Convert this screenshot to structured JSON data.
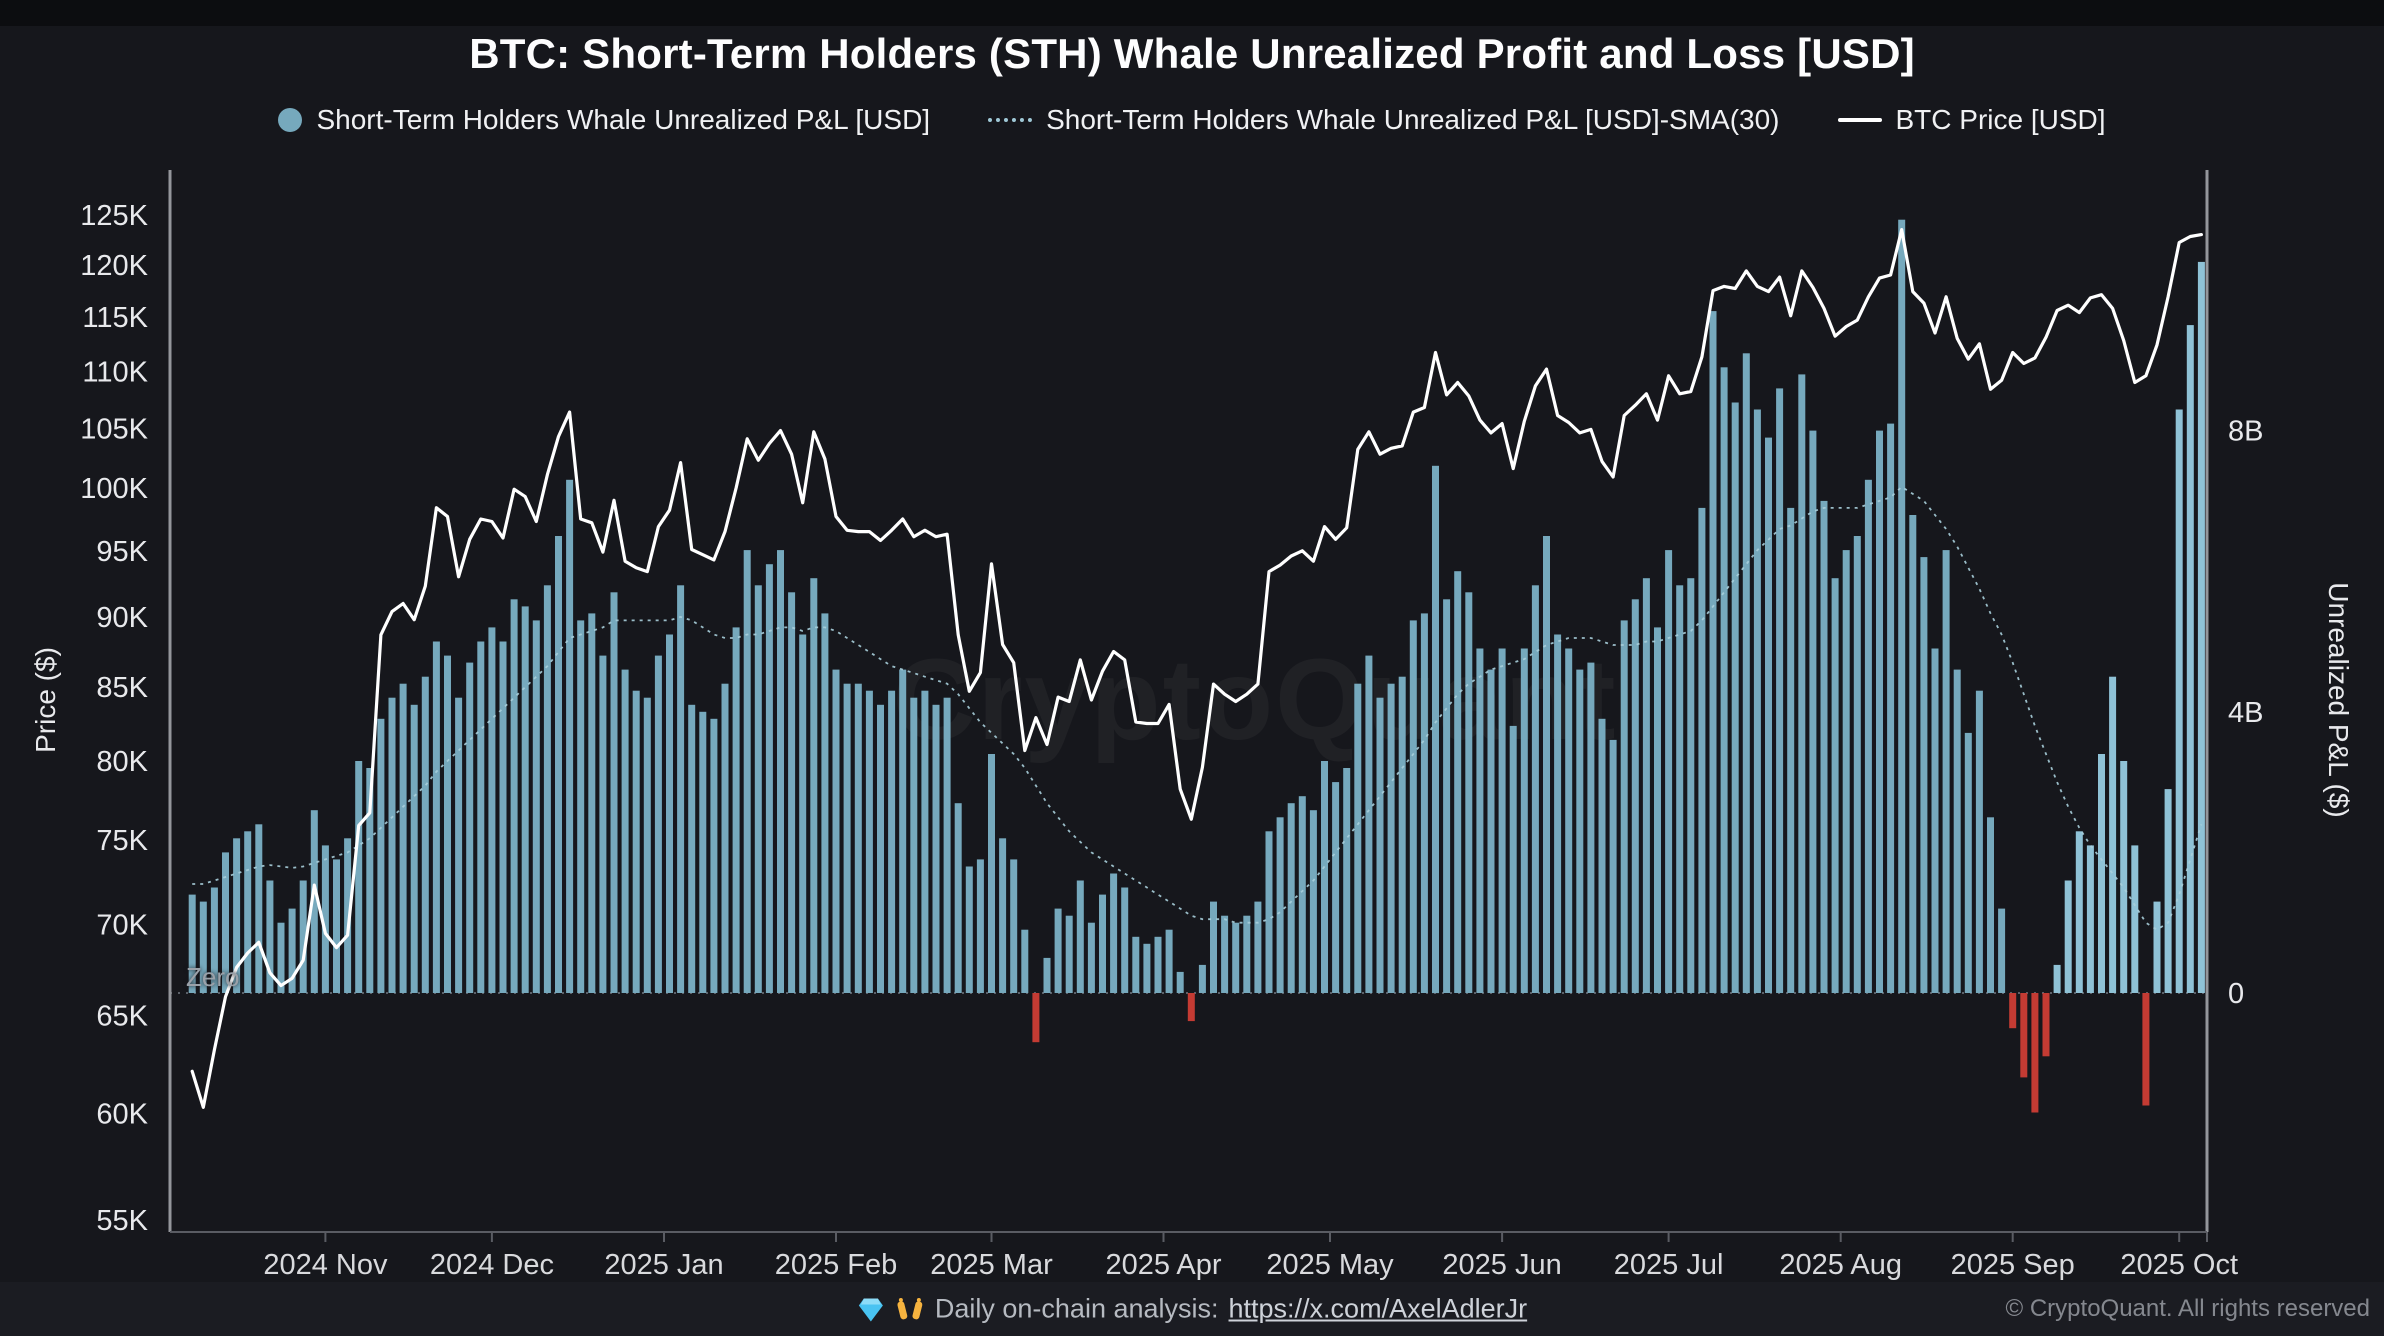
{
  "header": {
    "title": "BTC: Short-Term Holders (STH) Whale Unrealized Profit and Loss [USD]"
  },
  "legend": {
    "items": [
      {
        "label": "Short-Term Holders Whale Unrealized P&L [USD]",
        "marker": "dot",
        "color": "#76a9bd"
      },
      {
        "label": "Short-Term Holders Whale Unrealized P&L [USD]-SMA(30)",
        "marker": "dashed-line",
        "color": "#9fc8d6"
      },
      {
        "label": "BTC Price [USD]",
        "marker": "solid-line",
        "color": "#ffffff"
      }
    ]
  },
  "watermark": "CryptoQuant",
  "footer": {
    "analysis_text": "Daily on-chain analysis:",
    "link_text": "https://x.com/AxelAdlerJr",
    "copyright": "© CryptoQuant. All rights reserved"
  },
  "colors": {
    "background": "#16171c",
    "bar_positive": "#76a9bd",
    "bar_recent": "#8fc2d6",
    "bar_negative": "#c43b33",
    "price_line": "#ffffff",
    "sma_line": "#a9cfdb",
    "axis_line": "#94969b",
    "x_axis_line": "#5a5c63",
    "tick_text": "#e8e9ec"
  },
  "chart_data": {
    "type": "bar",
    "title": "BTC: Short-Term Holders (STH) Whale Unrealized Profit and Loss [USD]",
    "xlabel": "",
    "ylabel_left": "Price ($)",
    "ylabel_right": "Unrealized P&L ($)",
    "zero_label": "Zero",
    "x_axis_start_date": "2024-10-04",
    "x_axis_total_days": 367,
    "data_start_date": "2024-10-08",
    "data_start_day_offset": 4,
    "x_step_days": 2,
    "grid": false,
    "legend_position": "top",
    "left_axis": {
      "title": "Price ($)",
      "scale": "log",
      "tick_labels": [
        "125K",
        "120K",
        "115K",
        "110K",
        "105K",
        "100K",
        "95K",
        "90K",
        "85K",
        "80K",
        "75K",
        "70K",
        "65K",
        "60K",
        "55K"
      ],
      "tick_values": [
        125000,
        120000,
        115000,
        110000,
        105000,
        100000,
        95000,
        90000,
        85000,
        80000,
        75000,
        70000,
        65000,
        60000,
        55000
      ],
      "ylim": [
        52000,
        127000
      ]
    },
    "right_axis": {
      "title": "Unrealized P&L ($)",
      "scale": "linear",
      "tick_labels": [
        "8B",
        "4B",
        "0"
      ],
      "tick_values": [
        8,
        4,
        0
      ],
      "units": "billions USD",
      "ylim": [
        -2.5,
        12
      ]
    },
    "x_axis_labels": [
      {
        "label": "2024 Nov",
        "day": 28
      },
      {
        "label": "2024 Dec",
        "day": 58
      },
      {
        "label": "2025 Jan",
        "day": 89
      },
      {
        "label": "2025 Feb",
        "day": 120
      },
      {
        "label": "2025 Mar",
        "day": 148
      },
      {
        "label": "2025 Apr",
        "day": 179
      },
      {
        "label": "2025 May",
        "day": 209
      },
      {
        "label": "2025 Jun",
        "day": 240
      },
      {
        "label": "2025 Jul",
        "day": 270
      },
      {
        "label": "2025 Aug",
        "day": 301
      },
      {
        "label": "2025 Sep",
        "day": 332
      },
      {
        "label": "2025 Oct",
        "day": 362
      }
    ],
    "series": [
      {
        "name": "Short-Term Holders Whale Unrealized P&L [USD]",
        "type": "bar",
        "unit": "billion USD",
        "color_positive": "#76a9bd",
        "color_recent": "#8fc2d6",
        "color_negative": "#c43b33",
        "recent_from_index": 168,
        "values": [
          1.4,
          1.3,
          1.5,
          2.0,
          2.2,
          2.3,
          2.4,
          1.6,
          1.0,
          1.2,
          1.6,
          2.6,
          2.1,
          1.9,
          2.2,
          3.3,
          3.2,
          3.9,
          4.2,
          4.4,
          4.1,
          4.5,
          5.0,
          4.8,
          4.2,
          4.7,
          5.0,
          5.2,
          5.0,
          5.6,
          5.5,
          5.3,
          5.8,
          6.5,
          7.3,
          5.3,
          5.4,
          4.8,
          5.7,
          4.6,
          4.3,
          4.2,
          4.8,
          5.1,
          5.8,
          4.1,
          4.0,
          3.9,
          4.4,
          5.2,
          6.3,
          5.8,
          6.1,
          6.3,
          5.7,
          5.1,
          5.9,
          5.4,
          4.6,
          4.4,
          4.4,
          4.3,
          4.1,
          4.3,
          4.6,
          4.2,
          4.3,
          4.1,
          4.2,
          2.7,
          1.8,
          1.9,
          3.4,
          2.2,
          1.9,
          0.9,
          -0.7,
          0.5,
          1.2,
          1.1,
          1.6,
          1.0,
          1.4,
          1.7,
          1.5,
          0.8,
          0.7,
          0.8,
          0.9,
          0.3,
          -0.4,
          0.4,
          1.3,
          1.1,
          1.0,
          1.1,
          1.3,
          2.3,
          2.5,
          2.7,
          2.8,
          2.6,
          3.3,
          3.0,
          3.2,
          4.4,
          4.8,
          4.2,
          4.4,
          4.5,
          5.3,
          5.4,
          7.5,
          5.6,
          6.0,
          5.7,
          4.9,
          4.6,
          4.9,
          3.8,
          4.9,
          5.8,
          6.5,
          5.1,
          4.9,
          4.6,
          4.7,
          3.9,
          3.6,
          5.3,
          5.6,
          5.9,
          5.2,
          6.3,
          5.8,
          5.9,
          6.9,
          9.7,
          8.9,
          8.4,
          9.1,
          8.3,
          7.9,
          8.6,
          6.9,
          8.8,
          8.0,
          7.0,
          5.9,
          6.3,
          6.5,
          7.3,
          8.0,
          8.1,
          11.0,
          6.8,
          6.2,
          4.9,
          6.3,
          4.6,
          3.7,
          4.3,
          2.5,
          1.2,
          -0.5,
          -1.2,
          -1.7,
          -0.9,
          0.4,
          1.6,
          2.3,
          2.1,
          3.4,
          4.5,
          3.3,
          2.1,
          -1.6,
          1.3,
          2.9,
          8.3,
          9.5,
          10.4
        ]
      },
      {
        "name": "Short-Term Holders Whale Unrealized P&L [USD]-SMA(30)",
        "type": "line",
        "style": "dashed",
        "unit": "billion USD",
        "color": "#a9cfdb",
        "values": [
          1.55,
          1.55,
          1.6,
          1.65,
          1.7,
          1.75,
          1.8,
          1.82,
          1.8,
          1.78,
          1.8,
          1.85,
          1.9,
          1.95,
          2.0,
          2.1,
          2.2,
          2.35,
          2.5,
          2.65,
          2.8,
          2.95,
          3.15,
          3.3,
          3.45,
          3.6,
          3.75,
          3.9,
          4.05,
          4.2,
          4.35,
          4.5,
          4.65,
          4.85,
          5.05,
          5.1,
          5.15,
          5.2,
          5.3,
          5.3,
          5.3,
          5.3,
          5.3,
          5.3,
          5.35,
          5.3,
          5.2,
          5.1,
          5.05,
          5.05,
          5.1,
          5.1,
          5.15,
          5.2,
          5.2,
          5.15,
          5.2,
          5.2,
          5.15,
          5.05,
          4.95,
          4.85,
          4.75,
          4.65,
          4.6,
          4.55,
          4.5,
          4.45,
          4.4,
          4.25,
          4.05,
          3.85,
          3.7,
          3.55,
          3.4,
          3.2,
          2.95,
          2.7,
          2.5,
          2.3,
          2.15,
          2.0,
          1.9,
          1.8,
          1.7,
          1.6,
          1.5,
          1.4,
          1.3,
          1.2,
          1.1,
          1.05,
          1.05,
          1.05,
          1.0,
          1.0,
          1.0,
          1.05,
          1.15,
          1.3,
          1.45,
          1.6,
          1.8,
          2.0,
          2.2,
          2.4,
          2.6,
          2.8,
          3.0,
          3.2,
          3.4,
          3.6,
          3.85,
          4.05,
          4.25,
          4.4,
          4.5,
          4.6,
          4.65,
          4.7,
          4.75,
          4.85,
          4.95,
          5.0,
          5.05,
          5.05,
          5.05,
          5.0,
          4.95,
          4.95,
          4.95,
          5.0,
          5.0,
          5.05,
          5.1,
          5.15,
          5.3,
          5.5,
          5.7,
          5.9,
          6.1,
          6.3,
          6.45,
          6.6,
          6.65,
          6.75,
          6.85,
          6.9,
          6.9,
          6.9,
          6.9,
          6.95,
          7.0,
          7.05,
          7.2,
          7.1,
          7.0,
          6.8,
          6.6,
          6.35,
          6.05,
          5.75,
          5.4,
          5.1,
          4.7,
          4.25,
          3.8,
          3.4,
          3.0,
          2.65,
          2.35,
          2.1,
          1.9,
          1.7,
          1.5,
          1.25,
          1.0,
          0.9,
          1.0,
          1.4,
          1.9,
          2.4
        ]
      },
      {
        "name": "BTC Price [USD]",
        "type": "line",
        "unit": "thousand USD",
        "color": "#ffffff",
        "values": [
          62.1,
          60.3,
          63.2,
          66.0,
          67.6,
          68.4,
          69.0,
          67.3,
          66.6,
          67.0,
          68.0,
          72.3,
          69.5,
          68.7,
          69.4,
          75.9,
          76.7,
          88.7,
          90.4,
          91.0,
          89.8,
          92.3,
          98.4,
          97.7,
          93.0,
          95.9,
          97.5,
          97.3,
          96.0,
          99.9,
          99.3,
          97.3,
          101.1,
          104.3,
          106.4,
          97.5,
          97.2,
          94.9,
          99.0,
          94.2,
          93.7,
          93.4,
          96.9,
          98.2,
          102.1,
          95.1,
          94.7,
          94.3,
          96.5,
          100.0,
          104.1,
          102.3,
          103.7,
          104.8,
          102.8,
          98.8,
          104.7,
          102.4,
          97.7,
          96.6,
          96.5,
          96.5,
          95.8,
          96.6,
          97.5,
          96.1,
          96.6,
          96.1,
          96.3,
          88.7,
          84.7,
          86.0,
          94.0,
          88.0,
          86.7,
          80.7,
          82.9,
          81.1,
          84.3,
          84.0,
          86.9,
          84.1,
          86.1,
          87.5,
          86.9,
          82.6,
          82.5,
          82.5,
          83.8,
          78.2,
          76.3,
          79.6,
          85.2,
          84.5,
          84.0,
          84.5,
          85.2,
          93.4,
          93.9,
          94.6,
          95.0,
          94.2,
          96.9,
          95.9,
          96.8,
          103.2,
          104.7,
          102.8,
          103.3,
          103.5,
          106.4,
          106.8,
          111.7,
          107.9,
          109.0,
          107.8,
          105.7,
          104.6,
          105.4,
          101.6,
          105.6,
          108.7,
          110.2,
          106.1,
          105.5,
          104.6,
          104.9,
          102.2,
          100.9,
          106.1,
          107.0,
          108.0,
          105.7,
          109.6,
          108.0,
          108.2,
          111.3,
          117.5,
          117.9,
          117.7,
          119.4,
          117.9,
          117.4,
          118.8,
          115.1,
          119.4,
          117.8,
          115.8,
          113.2,
          114.1,
          114.7,
          116.9,
          118.7,
          119.0,
          123.5,
          117.4,
          116.3,
          113.5,
          116.9,
          113.0,
          111.1,
          112.5,
          108.4,
          109.2,
          111.7,
          110.7,
          111.2,
          113.1,
          115.6,
          116.1,
          115.4,
          116.8,
          117.1,
          115.8,
          112.8,
          109.0,
          109.6,
          112.4,
          116.9,
          122.2,
          122.8,
          123.0
        ]
      }
    ]
  }
}
